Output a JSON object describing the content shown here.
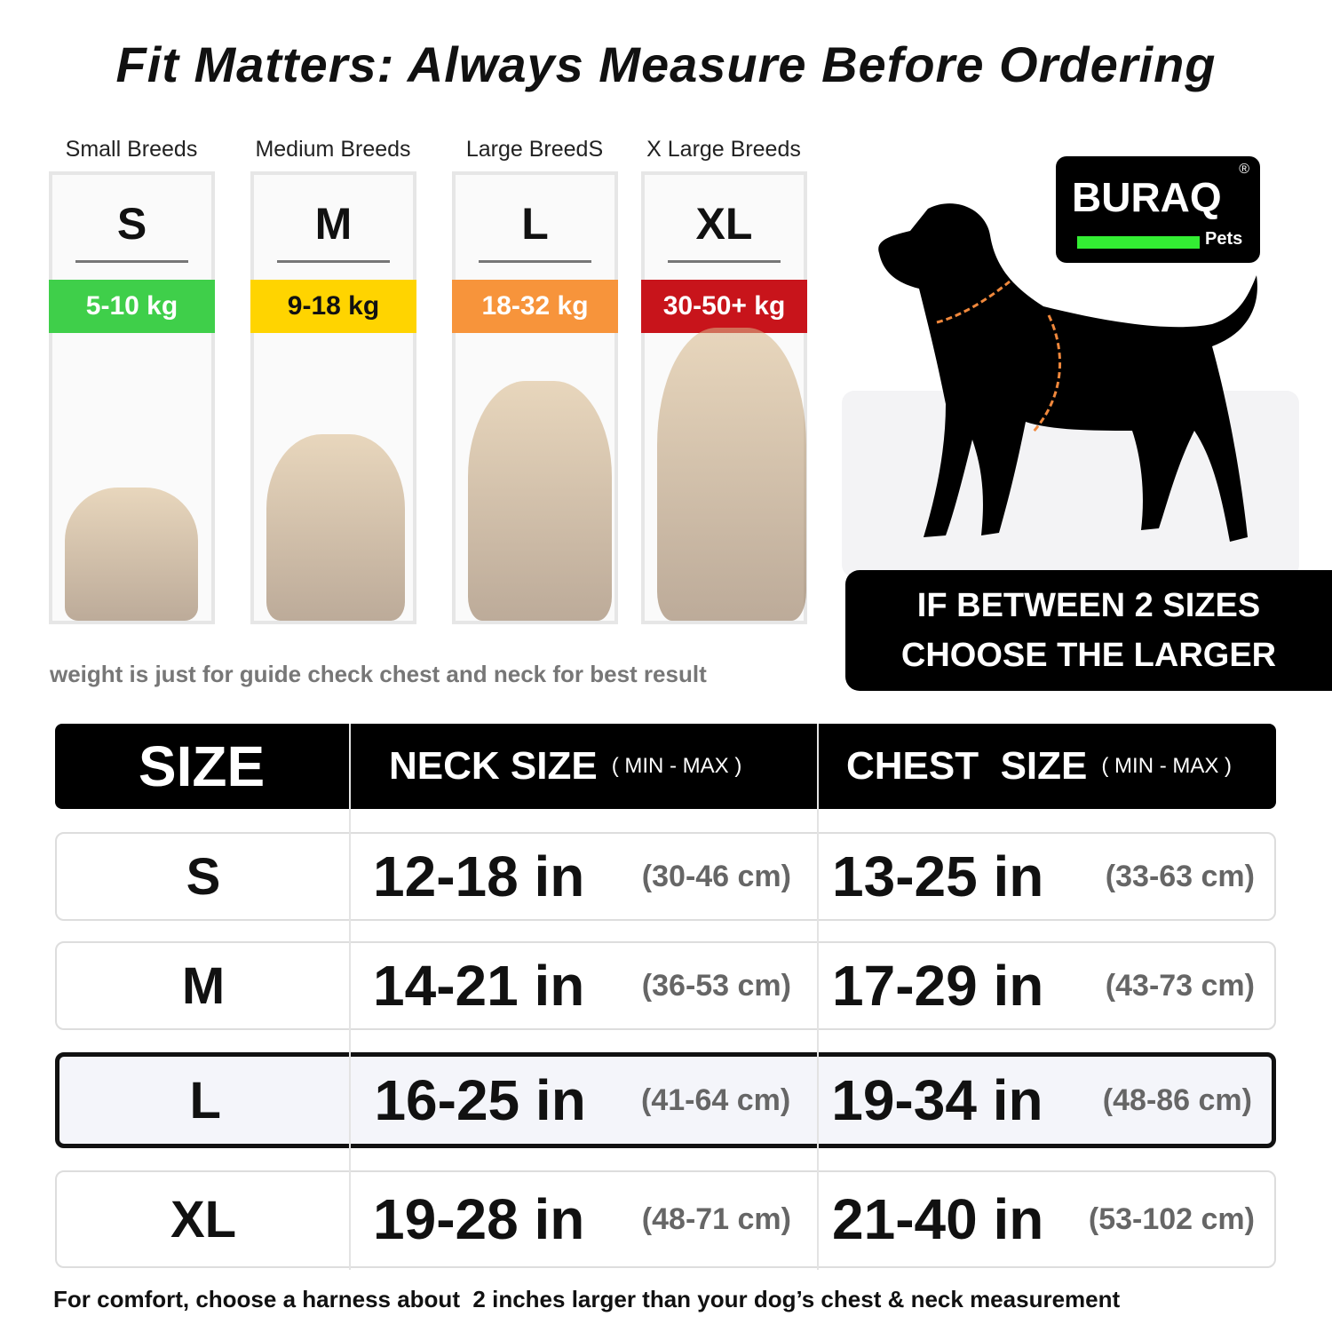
{
  "title": "Fit Matters: Always Measure Before Ordering",
  "breeds": [
    {
      "category": "Small Breeds",
      "size": "S",
      "weight": "5-10 kg",
      "color": "#3fcf4a",
      "text": "#fff"
    },
    {
      "category": "Medium Breeds",
      "size": "M",
      "weight": "9-18 kg",
      "color": "#ffd400",
      "text": "#111"
    },
    {
      "category": "Large BreedS",
      "size": "L",
      "weight": "18-32 kg",
      "color": "#f7943b",
      "text": "#fff"
    },
    {
      "category": "X Large Breeds",
      "size": "XL",
      "weight": "30-50+ kg",
      "color": "#c8141b",
      "text": "#fff"
    }
  ],
  "weight_note": "weight is just for guide check chest and neck for best result",
  "logo": {
    "brand": "BURAQ",
    "registered": "®",
    "sub": "Pets"
  },
  "banner": {
    "line1": "IF BETWEEN 2 SIZES",
    "line2": "CHOOSE THE LARGER"
  },
  "table": {
    "headers": {
      "size": "SIZE",
      "neck": "NECK SIZE",
      "neck_range": "( MIN - MAX )",
      "chest": "CHEST  SIZE",
      "chest_range": "( MIN - MAX )"
    },
    "rows": [
      {
        "size": "S",
        "neck_in": "12-18 in",
        "neck_cm": "(30-46 cm)",
        "chest_in": "13-25 in",
        "chest_cm": "(33-63 cm)"
      },
      {
        "size": "M",
        "neck_in": "14-21 in",
        "neck_cm": "(36-53 cm)",
        "chest_in": "17-29 in",
        "chest_cm": "(43-73 cm)"
      },
      {
        "size": "L",
        "neck_in": "16-25 in",
        "neck_cm": "(41-64 cm)",
        "chest_in": "19-34 in",
        "chest_cm": "(48-86 cm)",
        "highlighted": true
      },
      {
        "size": "XL",
        "neck_in": "19-28 in",
        "neck_cm": "(48-71 cm)",
        "chest_in": "21-40 in",
        "chest_cm": "(53-102 cm)"
      }
    ]
  },
  "footer": "For comfort, choose a harness about  2 inches larger than your dog’s chest & neck measurement"
}
